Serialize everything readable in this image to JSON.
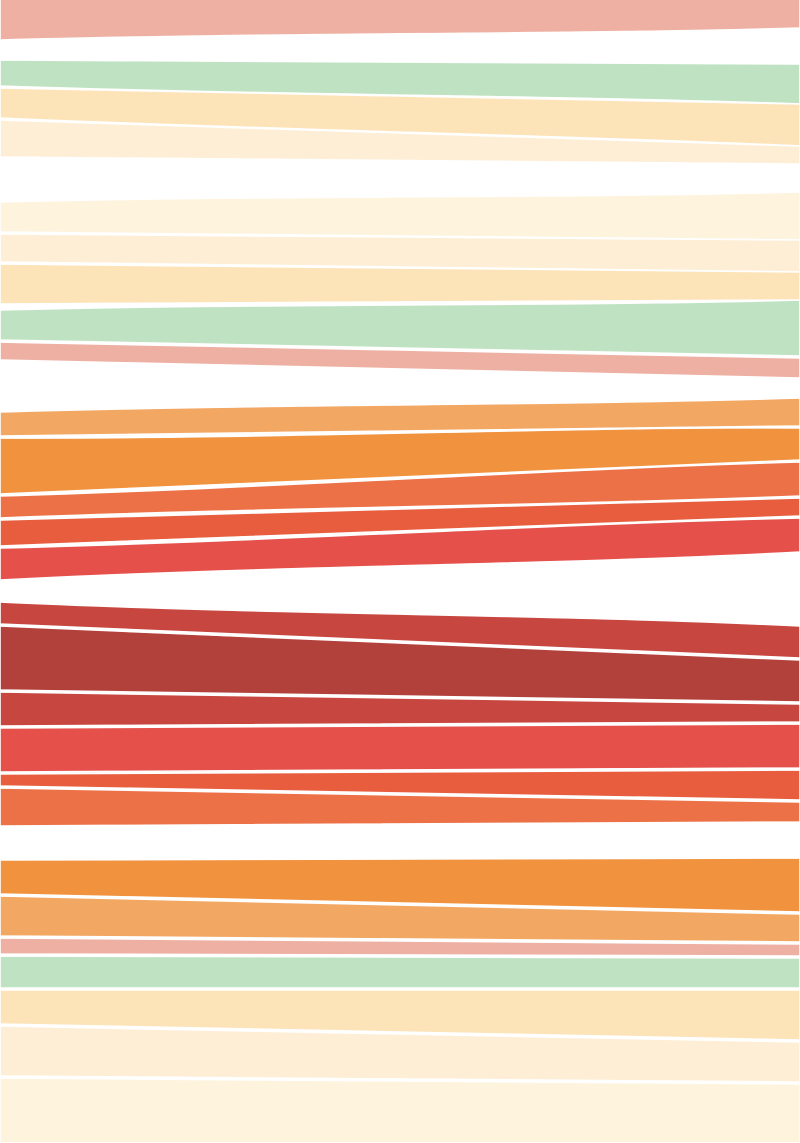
{
  "artwork": {
    "palette": {
      "background": "#ffffff",
      "divider": "#ffffff",
      "salmon_pink": "#eeb0a2",
      "mint_green": "#bfe3c2",
      "light_peach": "#fde3b8",
      "pale_cream": "#fdeed5",
      "light_cream": "#fef3dc",
      "light_orange": "#f2a763",
      "orange": "#f0923e",
      "deep_orange": "#ec7147",
      "red_orange": "#e75d3e",
      "red": "#e5504b",
      "crimson": "#c7463f",
      "dark_red": "#b3413b"
    },
    "stripe_colors": [
      "#eeb0a2",
      "#bfe3c2",
      "#fde3b8",
      "#fdeed5",
      "#fef3dc",
      "#fdeed5",
      "#fde3b8",
      "#bfe3c2",
      "#eeb0a2",
      "#f2a763",
      "#f0923e",
      "#ec7147",
      "#e75d3e",
      "#e5504b",
      "#c7463f",
      "#b3413b",
      "#c7463f",
      "#e5504b",
      "#e75d3e",
      "#ec7147",
      "#f0923e",
      "#f2a763",
      "#eeb0a2",
      "#bfe3c2",
      "#fde3b8",
      "#fdeed5",
      "#fef3dc"
    ]
  }
}
